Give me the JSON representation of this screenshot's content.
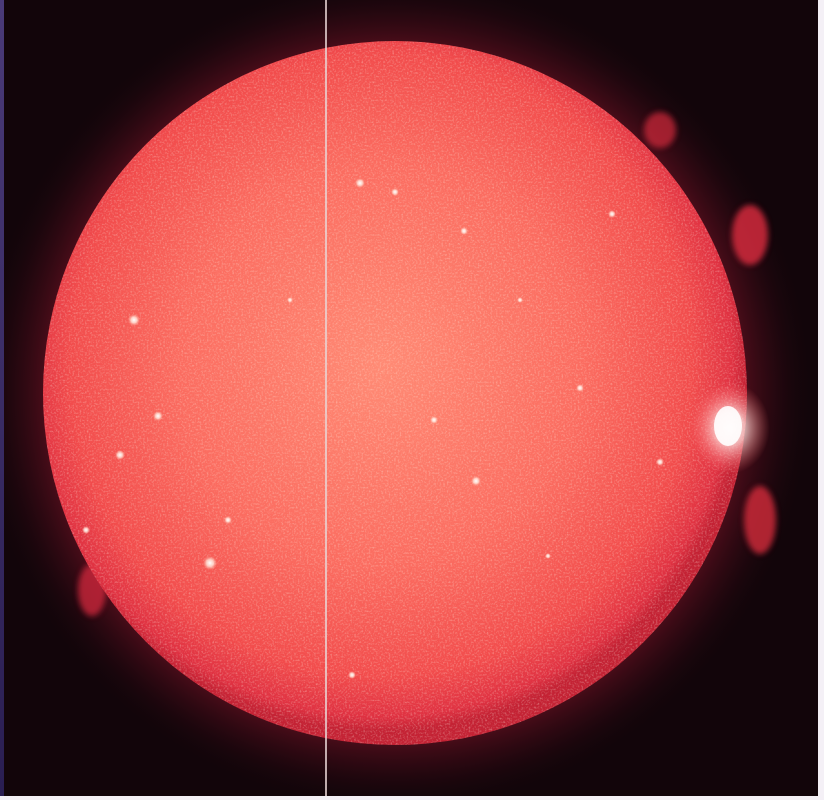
{
  "image": {
    "subject": "sun",
    "colors": {
      "background": "#12050a",
      "disk_core": "#ff7d6a",
      "disk_mid": "#f45852",
      "limb": "#d8283a",
      "corona": "#c01c34",
      "bright_point": "#ffeedd",
      "scanline": "#e8d4d4"
    }
  }
}
